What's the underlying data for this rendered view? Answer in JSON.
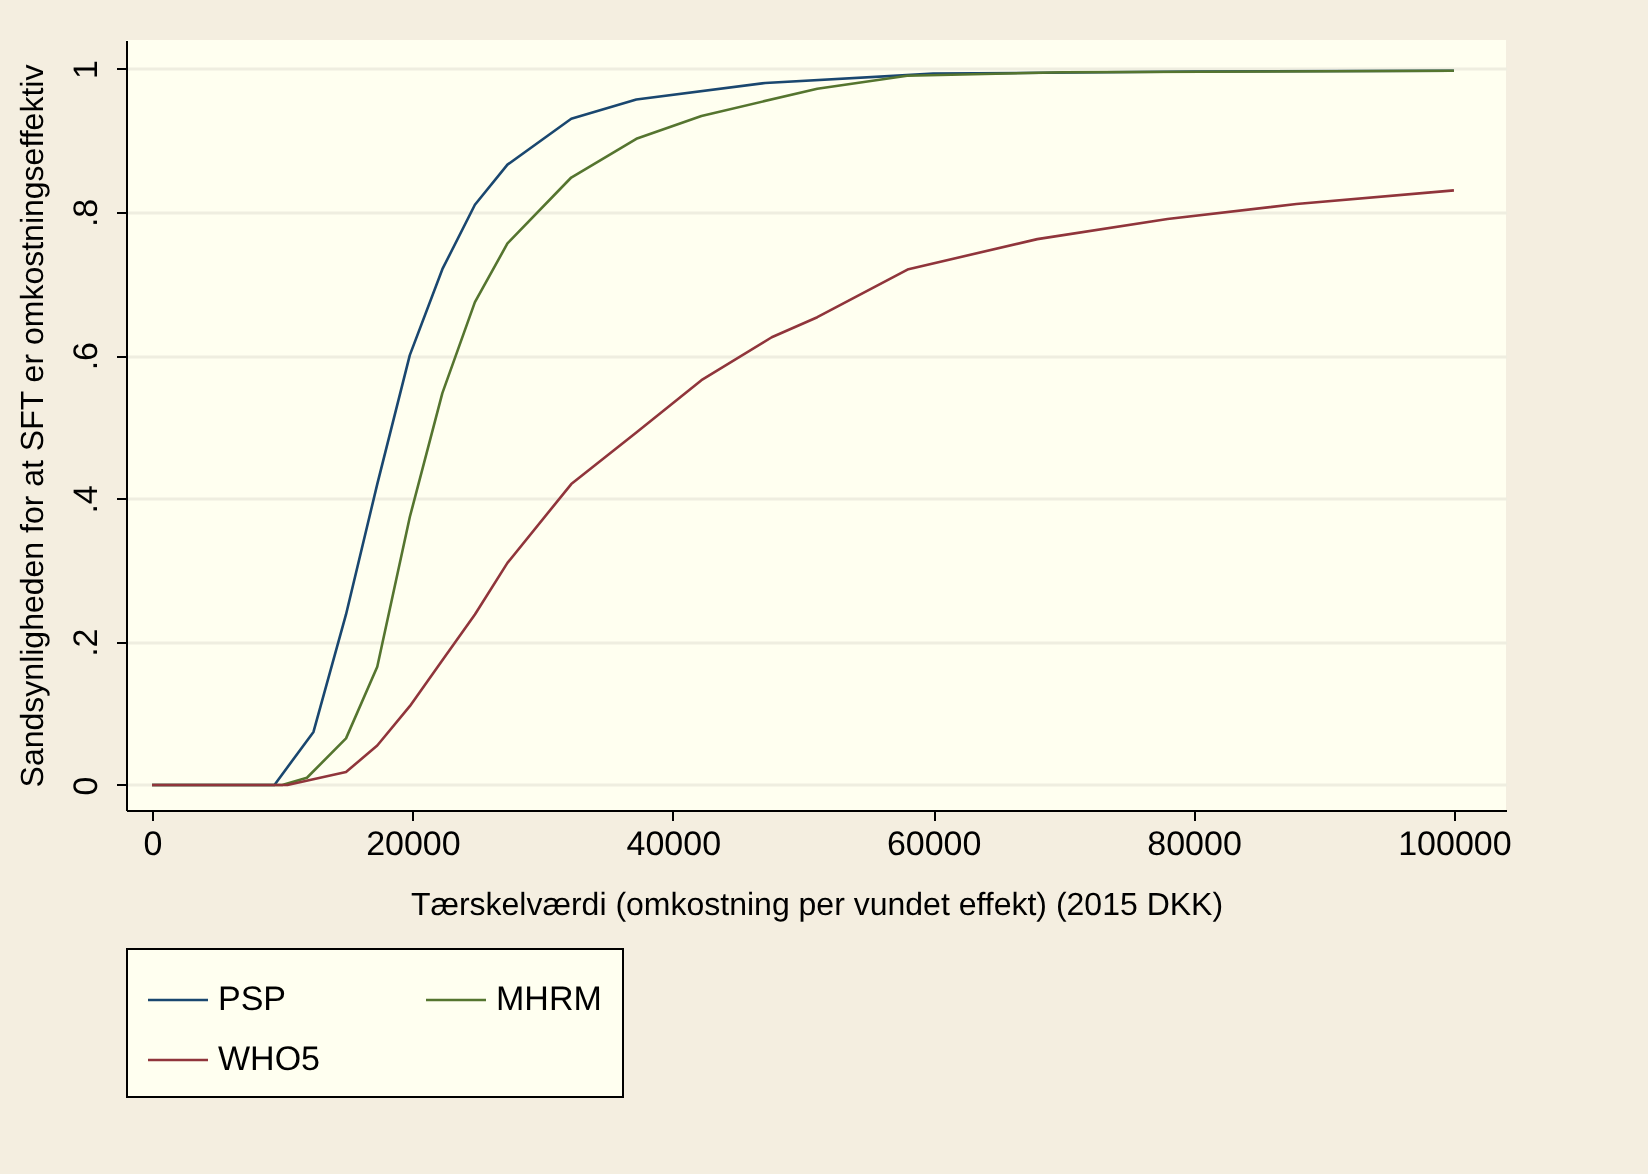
{
  "chart_data": {
    "type": "line",
    "xlabel": "Tærskelværdi (omkostning per vundet effekt) (2015 DKK)",
    "ylabel": "Sandsynligheden for at SFT er omkostningseffektiv",
    "xlim": [
      -2000,
      104000
    ],
    "ylim": [
      -0.035,
      1.04
    ],
    "xticks": [
      0,
      20000,
      40000,
      60000,
      80000,
      100000
    ],
    "yticks": [
      {
        "value": 0,
        "label": "0"
      },
      {
        "value": 0.2,
        "label": ".2"
      },
      {
        "value": 0.4,
        "label": ".4"
      },
      {
        "value": 0.6,
        "label": ".6"
      },
      {
        "value": 0.8,
        "label": ".8"
      },
      {
        "value": 1,
        "label": "1"
      }
    ],
    "grid": "y",
    "legend": "bottom",
    "series": [
      {
        "name": "PSP",
        "color": "#1a476f",
        "x": [
          0,
          9400,
          12400,
          14900,
          17300,
          19800,
          22300,
          24800,
          27300,
          32200,
          37200,
          47100,
          60000,
          80000,
          100000
        ],
        "values": [
          0,
          0,
          0.074,
          0.238,
          0.42,
          0.6,
          0.72,
          0.81,
          0.866,
          0.93,
          0.957,
          0.98,
          0.993,
          0.996,
          0.997
        ]
      },
      {
        "name": "MHRM",
        "color": "#55752f",
        "x": [
          0,
          10000,
          11900,
          14900,
          17300,
          19800,
          22300,
          24800,
          27300,
          32200,
          37200,
          42200,
          51100,
          58000,
          70000,
          100000
        ],
        "values": [
          0,
          0,
          0.01,
          0.065,
          0.165,
          0.374,
          0.547,
          0.674,
          0.756,
          0.848,
          0.902,
          0.934,
          0.972,
          0.99,
          0.995,
          0.997
        ]
      },
      {
        "name": "WHO5",
        "color": "#90353b",
        "x": [
          0,
          10400,
          14900,
          17300,
          19800,
          22300,
          24800,
          27300,
          32200,
          37200,
          42200,
          47600,
          51100,
          58100,
          68000,
          78000,
          87900,
          100000
        ],
        "values": [
          0,
          0,
          0.018,
          0.055,
          0.11,
          0.174,
          0.238,
          0.31,
          0.42,
          0.492,
          0.565,
          0.625,
          0.653,
          0.72,
          0.762,
          0.79,
          0.811,
          0.83
        ]
      }
    ]
  }
}
